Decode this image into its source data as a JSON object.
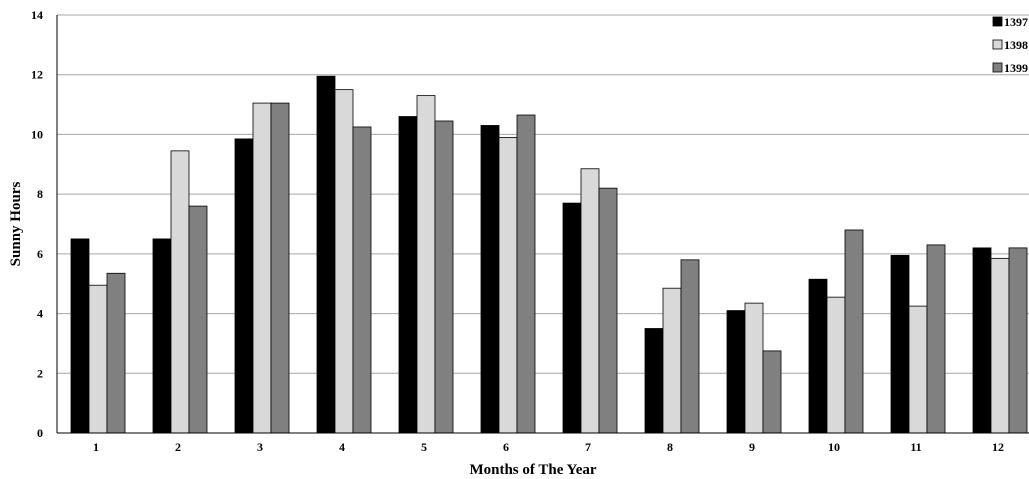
{
  "chart_data": {
    "type": "bar",
    "title": "",
    "xlabel": "Months of The Year",
    "ylabel": "Sunny Hours",
    "ylim": [
      0,
      14
    ],
    "yticks": [
      0,
      2,
      4,
      6,
      8,
      10,
      12,
      14
    ],
    "grid": true,
    "legend_position": "top-right",
    "categories": [
      "1",
      "2",
      "3",
      "4",
      "5",
      "6",
      "7",
      "8",
      "9",
      "10",
      "11",
      "12"
    ],
    "series": [
      {
        "name": "1397",
        "color": "#000000",
        "values": [
          6.5,
          6.5,
          9.85,
          11.95,
          10.6,
          10.3,
          7.7,
          3.5,
          4.1,
          5.15,
          5.95,
          6.2
        ]
      },
      {
        "name": "1398",
        "color": "#d9d9d9",
        "values": [
          4.95,
          9.45,
          11.05,
          11.5,
          11.3,
          9.9,
          8.85,
          4.85,
          4.35,
          4.55,
          4.25,
          5.85
        ]
      },
      {
        "name": "1399",
        "color": "#808080",
        "values": [
          5.35,
          7.6,
          11.05,
          10.25,
          10.45,
          10.65,
          8.2,
          5.8,
          2.75,
          6.8,
          6.3,
          6.2
        ]
      }
    ]
  }
}
